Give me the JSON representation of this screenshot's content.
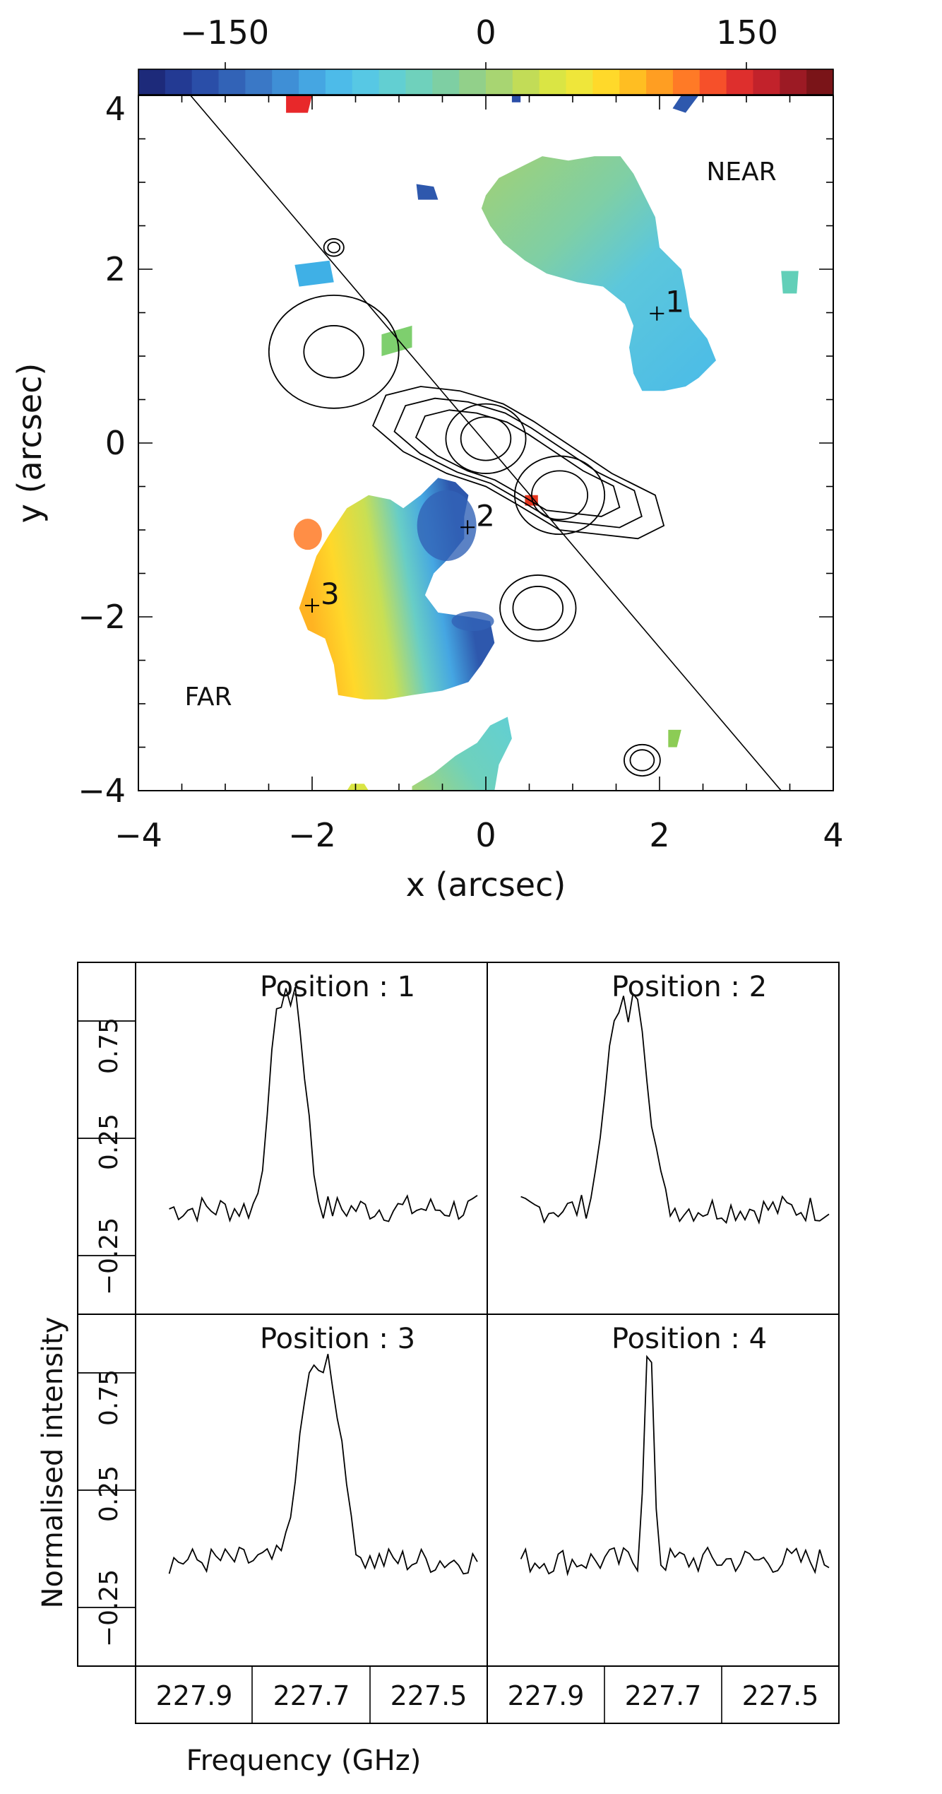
{
  "chart_data": [
    {
      "type": "heatmap",
      "colorbar": {
        "range": [
          -200,
          200
        ],
        "ticks": [
          -150,
          0,
          150
        ],
        "tick_labels": [
          "−150",
          "0",
          "150"
        ],
        "colors": [
          "#1d2a7a",
          "#233a93",
          "#2a4ea8",
          "#3263b7",
          "#3a78c6",
          "#3f8fd6",
          "#45a6e2",
          "#4dbbe9",
          "#57c8e4",
          "#62cfd2",
          "#6fd1bc",
          "#7ecfa3",
          "#92d08a",
          "#a8d572",
          "#c2dc57",
          "#dae544",
          "#efe63a",
          "#ffd92a",
          "#ffbe22",
          "#ff9e22",
          "#ff7a26",
          "#f6502a",
          "#de2f2d",
          "#c2222b",
          "#9c1a24",
          "#7a1418"
        ]
      },
      "xlabel": "x (arcsec)",
      "ylabel": "y (arcsec)",
      "xlim": [
        -4,
        4
      ],
      "ylim": [
        -4,
        4
      ],
      "x_tick_labels": [
        "−4",
        "−2",
        "0",
        "2",
        "4"
      ],
      "y_tick_labels": [
        "−4",
        "−2",
        "0",
        "2",
        "4"
      ],
      "annotations": [
        {
          "text": "NEAR",
          "x": 2.95,
          "y": 3.1
        },
        {
          "text": "FAR",
          "x": -3.3,
          "y": -2.95
        }
      ],
      "markers": [
        {
          "label": "1",
          "x": 1.97,
          "y": 1.49
        },
        {
          "label": "2",
          "x": -0.21,
          "y": -0.97
        },
        {
          "label": "3",
          "x": -2.0,
          "y": -1.87
        }
      ],
      "line": [
        [
          -3.4,
          4.0
        ],
        [
          3.4,
          -4.0
        ]
      ],
      "patches": [
        {
          "name": "near",
          "value": 0,
          "poly": [
            [
              0.0,
              2.85
            ],
            [
              0.15,
              3.05
            ],
            [
              0.45,
              3.2
            ],
            [
              0.65,
              3.3
            ],
            [
              0.95,
              3.25
            ],
            [
              1.25,
              3.3
            ],
            [
              1.55,
              3.3
            ],
            [
              1.7,
              3.1
            ],
            [
              1.8,
              2.9
            ],
            [
              1.95,
              2.6
            ],
            [
              2.0,
              2.25
            ],
            [
              2.25,
              2.0
            ],
            [
              2.3,
              1.75
            ],
            [
              2.35,
              1.45
            ],
            [
              2.55,
              1.2
            ],
            [
              2.65,
              0.95
            ],
            [
              2.45,
              0.75
            ],
            [
              2.3,
              0.65
            ],
            [
              2.05,
              0.6
            ],
            [
              1.8,
              0.6
            ],
            [
              1.7,
              0.8
            ],
            [
              1.65,
              1.1
            ],
            [
              1.7,
              1.35
            ],
            [
              1.6,
              1.6
            ],
            [
              1.35,
              1.8
            ],
            [
              1.05,
              1.85
            ],
            [
              0.7,
              1.95
            ],
            [
              0.45,
              2.1
            ],
            [
              0.2,
              2.3
            ],
            [
              0.05,
              2.5
            ],
            [
              -0.05,
              2.7
            ]
          ]
        },
        {
          "name": "far",
          "value": 0,
          "poly": [
            [
              -2.15,
              -1.9
            ],
            [
              -2.05,
              -1.6
            ],
            [
              -1.95,
              -1.3
            ],
            [
              -1.8,
              -1.05
            ],
            [
              -1.6,
              -0.75
            ],
            [
              -1.35,
              -0.6
            ],
            [
              -1.1,
              -0.65
            ],
            [
              -0.95,
              -0.75
            ],
            [
              -0.75,
              -0.6
            ],
            [
              -0.55,
              -0.4
            ],
            [
              -0.35,
              -0.45
            ],
            [
              -0.2,
              -0.6
            ],
            [
              -0.25,
              -0.85
            ],
            [
              -0.25,
              -1.1
            ],
            [
              -0.45,
              -1.35
            ],
            [
              -0.6,
              -1.5
            ],
            [
              -0.7,
              -1.75
            ],
            [
              -0.55,
              -1.95
            ],
            [
              -0.2,
              -2.0
            ],
            [
              0.05,
              -2.05
            ],
            [
              0.1,
              -2.3
            ],
            [
              -0.05,
              -2.55
            ],
            [
              -0.2,
              -2.75
            ],
            [
              -0.5,
              -2.85
            ],
            [
              -0.85,
              -2.9
            ],
            [
              -1.15,
              -2.95
            ],
            [
              -1.4,
              -2.95
            ],
            [
              -1.7,
              -2.9
            ],
            [
              -1.75,
              -2.55
            ],
            [
              -1.85,
              -2.25
            ],
            [
              -2.05,
              -2.15
            ]
          ]
        },
        {
          "name": "south",
          "value": 0,
          "poly": [
            [
              -0.85,
              -3.95
            ],
            [
              -0.6,
              -3.8
            ],
            [
              -0.35,
              -3.6
            ],
            [
              -0.1,
              -3.45
            ],
            [
              0.05,
              -3.25
            ],
            [
              0.25,
              -3.15
            ],
            [
              0.3,
              -3.4
            ],
            [
              0.15,
              -3.7
            ],
            [
              0.1,
              -4.0
            ],
            [
              -0.85,
              -4.0
            ]
          ]
        },
        {
          "name": "south2",
          "value": 0,
          "poly": [
            [
              -1.6,
              -4.0
            ],
            [
              -1.55,
              -3.92
            ],
            [
              -1.4,
              -3.92
            ],
            [
              -1.35,
              -4.0
            ]
          ]
        },
        {
          "name": "b1",
          "value": 0,
          "poly": [
            [
              -2.2,
              2.05
            ],
            [
              -1.8,
              2.1
            ],
            [
              -1.75,
              1.85
            ],
            [
              -2.15,
              1.8
            ]
          ]
        },
        {
          "name": "b2",
          "value": 0,
          "poly": [
            [
              -1.2,
              1.25
            ],
            [
              -0.85,
              1.35
            ],
            [
              -0.85,
              1.1
            ],
            [
              -1.2,
              1.0
            ]
          ]
        },
        {
          "name": "b3",
          "value": 0,
          "poly": [
            [
              3.4,
              1.98
            ],
            [
              3.6,
              1.98
            ],
            [
              3.58,
              1.72
            ],
            [
              3.42,
              1.72
            ]
          ]
        },
        {
          "name": "b4",
          "value": 0,
          "poly": [
            [
              -0.8,
              2.98
            ],
            [
              -0.6,
              2.95
            ],
            [
              -0.55,
              2.8
            ],
            [
              -0.78,
              2.8
            ]
          ]
        },
        {
          "name": "b5",
          "value": 0,
          "poly": [
            [
              2.25,
              4.0
            ],
            [
              2.45,
              4.0
            ],
            [
              2.3,
              3.8
            ],
            [
              2.15,
              3.85
            ]
          ]
        },
        {
          "name": "b6",
          "value": 0,
          "poly": [
            [
              0.3,
              4.0
            ],
            [
              0.4,
              4.0
            ],
            [
              0.4,
              3.92
            ],
            [
              0.3,
              3.92
            ]
          ]
        },
        {
          "name": "r1",
          "value": 0,
          "poly": [
            [
              -2.3,
              4.0
            ],
            [
              -2.0,
              4.0
            ],
            [
              -2.05,
              3.8
            ],
            [
              -2.3,
              3.8
            ]
          ]
        },
        {
          "name": "r2",
          "value": 0,
          "poly": [
            [
              0.45,
              -0.6
            ],
            [
              0.6,
              -0.6
            ],
            [
              0.6,
              -0.72
            ],
            [
              0.45,
              -0.72
            ]
          ]
        },
        {
          "name": "g1",
          "value": 0,
          "poly": [
            [
              2.1,
              -3.3
            ],
            [
              2.25,
              -3.3
            ],
            [
              2.2,
              -3.5
            ],
            [
              2.1,
              -3.5
            ]
          ]
        }
      ],
      "contours": [
        {
          "center": [
            0.0,
            0.05
          ],
          "radii": [
            0.25,
            0.4
          ]
        },
        {
          "center": [
            0.85,
            -0.6
          ],
          "radii": [
            0.28,
            0.45
          ]
        },
        {
          "center": [
            -1.75,
            1.05
          ],
          "radii": [
            0.3,
            0.65
          ]
        },
        {
          "center": [
            0.6,
            -1.9
          ],
          "radii": [
            0.25,
            0.38
          ]
        },
        {
          "center": [
            1.8,
            -3.65
          ],
          "radii": [
            0.12,
            0.18
          ]
        },
        {
          "center": [
            -1.75,
            2.25
          ],
          "radii": [
            0.06,
            0.1
          ]
        }
      ]
    },
    {
      "type": "line",
      "ylabel": "Normalised intensity",
      "xlabel": "Frequency (GHz)",
      "x_tick_labels": [
        "227.9",
        "227.7",
        "227.5"
      ],
      "y_tick_labels": [
        "−0.25",
        "0.25",
        "0.75"
      ],
      "xlim": [
        228.1,
        227.4
      ],
      "ylim": [
        -0.5,
        1.0
      ],
      "panels": [
        {
          "title": "Position : 1",
          "peak_at": 227.8,
          "peak": 0.92,
          "width": 0.045
        },
        {
          "title": "Position : 2",
          "peak_at": 227.825,
          "peak": 0.88,
          "width": 0.055
        },
        {
          "title": "Position : 3",
          "peak_at": 227.73,
          "peak": 0.82,
          "width": 0.055
        },
        {
          "title": "Position : 4",
          "peak_at": 227.78,
          "peak": 0.85,
          "width": 0.014
        }
      ]
    }
  ]
}
